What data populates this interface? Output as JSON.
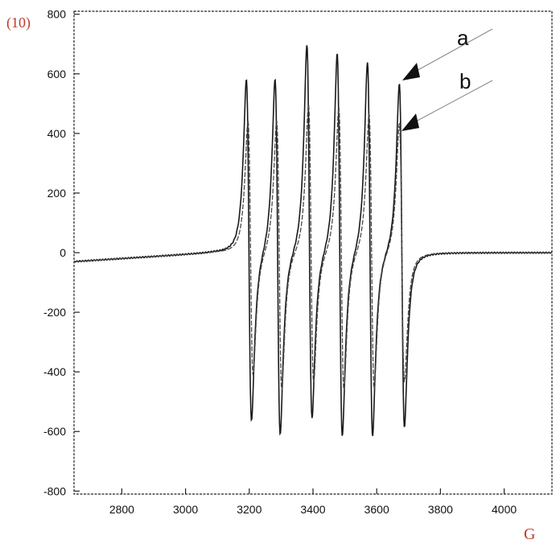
{
  "figure_label": "(10)",
  "x_unit": "G",
  "chart_data": {
    "type": "line",
    "title": "",
    "xlabel": "G",
    "ylabel": "",
    "xlim": [
      2650,
      4150
    ],
    "ylim": [
      -810,
      810
    ],
    "x_ticks": [
      2800,
      3000,
      3200,
      3400,
      3600,
      3800,
      4000
    ],
    "x_tick_labels": [
      "2800",
      "3000",
      "3200",
      "3400",
      "3600",
      "3800",
      "4000"
    ],
    "y_ticks": [
      800,
      600,
      400,
      200,
      0,
      -200,
      -400,
      -600,
      -800
    ],
    "y_tick_labels": [
      "800",
      "600",
      "400",
      "200",
      "0",
      "-200",
      "-400",
      "-600",
      "-800"
    ],
    "grid": false,
    "series": [
      {
        "name": "a",
        "color": "#1a1a1a",
        "baseline_start": -30,
        "baseline_end": 0,
        "peaks": [
          {
            "pos": 3185,
            "max": 575,
            "min": -575
          },
          {
            "pos": 3275,
            "max": 585,
            "min": -615
          },
          {
            "pos": 3375,
            "max": 700,
            "min": -560
          },
          {
            "pos": 3470,
            "max": 670,
            "min": -620
          },
          {
            "pos": 3565,
            "max": 645,
            "min": -615
          },
          {
            "pos": 3665,
            "max": 575,
            "min": -580
          }
        ]
      },
      {
        "name": "b",
        "color": "#4a4a4a",
        "baseline_start": -30,
        "baseline_end": 0,
        "peaks": [
          {
            "pos": 3190,
            "max": 440,
            "min": -420
          },
          {
            "pos": 3280,
            "max": 445,
            "min": -465
          },
          {
            "pos": 3380,
            "max": 500,
            "min": -440
          },
          {
            "pos": 3475,
            "max": 490,
            "min": -465
          },
          {
            "pos": 3570,
            "max": 470,
            "min": -460
          },
          {
            "pos": 3665,
            "max": 440,
            "min": -430
          }
        ]
      }
    ]
  }
}
